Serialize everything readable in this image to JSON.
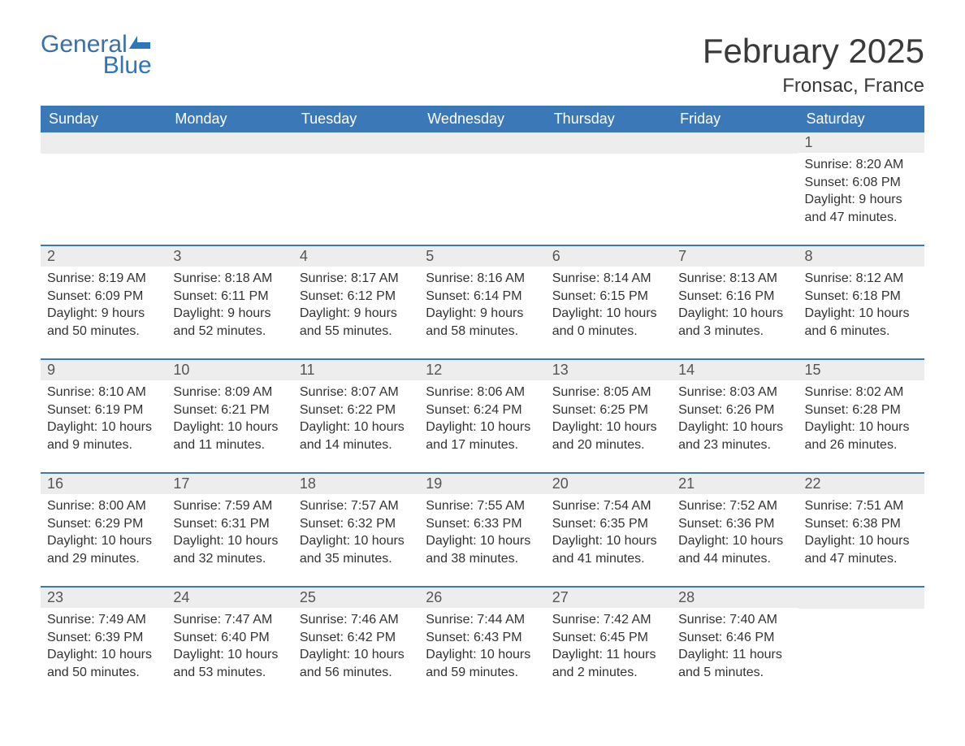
{
  "brand": {
    "name1": "General",
    "name2": "Blue",
    "flag_color": "#2e76bc"
  },
  "title": "February 2025",
  "location": "Fronsac, France",
  "colors": {
    "header_bg": "#3a78b8",
    "header_text": "#ffffff",
    "daynum_bg": "#ededed",
    "rule": "#3a78b8",
    "body_text": "#333333",
    "title_text": "#3a3a3a"
  },
  "dow": [
    "Sunday",
    "Monday",
    "Tuesday",
    "Wednesday",
    "Thursday",
    "Friday",
    "Saturday"
  ],
  "labels": {
    "sunrise": "Sunrise",
    "sunset": "Sunset",
    "daylight": "Daylight"
  },
  "weeks": [
    [
      null,
      null,
      null,
      null,
      null,
      null,
      {
        "n": 1,
        "sunrise": "8:20 AM",
        "sunset": "6:08 PM",
        "daylight": "9 hours and 47 minutes."
      }
    ],
    [
      {
        "n": 2,
        "sunrise": "8:19 AM",
        "sunset": "6:09 PM",
        "daylight": "9 hours and 50 minutes."
      },
      {
        "n": 3,
        "sunrise": "8:18 AM",
        "sunset": "6:11 PM",
        "daylight": "9 hours and 52 minutes."
      },
      {
        "n": 4,
        "sunrise": "8:17 AM",
        "sunset": "6:12 PM",
        "daylight": "9 hours and 55 minutes."
      },
      {
        "n": 5,
        "sunrise": "8:16 AM",
        "sunset": "6:14 PM",
        "daylight": "9 hours and 58 minutes."
      },
      {
        "n": 6,
        "sunrise": "8:14 AM",
        "sunset": "6:15 PM",
        "daylight": "10 hours and 0 minutes."
      },
      {
        "n": 7,
        "sunrise": "8:13 AM",
        "sunset": "6:16 PM",
        "daylight": "10 hours and 3 minutes."
      },
      {
        "n": 8,
        "sunrise": "8:12 AM",
        "sunset": "6:18 PM",
        "daylight": "10 hours and 6 minutes."
      }
    ],
    [
      {
        "n": 9,
        "sunrise": "8:10 AM",
        "sunset": "6:19 PM",
        "daylight": "10 hours and 9 minutes."
      },
      {
        "n": 10,
        "sunrise": "8:09 AM",
        "sunset": "6:21 PM",
        "daylight": "10 hours and 11 minutes."
      },
      {
        "n": 11,
        "sunrise": "8:07 AM",
        "sunset": "6:22 PM",
        "daylight": "10 hours and 14 minutes."
      },
      {
        "n": 12,
        "sunrise": "8:06 AM",
        "sunset": "6:24 PM",
        "daylight": "10 hours and 17 minutes."
      },
      {
        "n": 13,
        "sunrise": "8:05 AM",
        "sunset": "6:25 PM",
        "daylight": "10 hours and 20 minutes."
      },
      {
        "n": 14,
        "sunrise": "8:03 AM",
        "sunset": "6:26 PM",
        "daylight": "10 hours and 23 minutes."
      },
      {
        "n": 15,
        "sunrise": "8:02 AM",
        "sunset": "6:28 PM",
        "daylight": "10 hours and 26 minutes."
      }
    ],
    [
      {
        "n": 16,
        "sunrise": "8:00 AM",
        "sunset": "6:29 PM",
        "daylight": "10 hours and 29 minutes."
      },
      {
        "n": 17,
        "sunrise": "7:59 AM",
        "sunset": "6:31 PM",
        "daylight": "10 hours and 32 minutes."
      },
      {
        "n": 18,
        "sunrise": "7:57 AM",
        "sunset": "6:32 PM",
        "daylight": "10 hours and 35 minutes."
      },
      {
        "n": 19,
        "sunrise": "7:55 AM",
        "sunset": "6:33 PM",
        "daylight": "10 hours and 38 minutes."
      },
      {
        "n": 20,
        "sunrise": "7:54 AM",
        "sunset": "6:35 PM",
        "daylight": "10 hours and 41 minutes."
      },
      {
        "n": 21,
        "sunrise": "7:52 AM",
        "sunset": "6:36 PM",
        "daylight": "10 hours and 44 minutes."
      },
      {
        "n": 22,
        "sunrise": "7:51 AM",
        "sunset": "6:38 PM",
        "daylight": "10 hours and 47 minutes."
      }
    ],
    [
      {
        "n": 23,
        "sunrise": "7:49 AM",
        "sunset": "6:39 PM",
        "daylight": "10 hours and 50 minutes."
      },
      {
        "n": 24,
        "sunrise": "7:47 AM",
        "sunset": "6:40 PM",
        "daylight": "10 hours and 53 minutes."
      },
      {
        "n": 25,
        "sunrise": "7:46 AM",
        "sunset": "6:42 PM",
        "daylight": "10 hours and 56 minutes."
      },
      {
        "n": 26,
        "sunrise": "7:44 AM",
        "sunset": "6:43 PM",
        "daylight": "10 hours and 59 minutes."
      },
      {
        "n": 27,
        "sunrise": "7:42 AM",
        "sunset": "6:45 PM",
        "daylight": "11 hours and 2 minutes."
      },
      {
        "n": 28,
        "sunrise": "7:40 AM",
        "sunset": "6:46 PM",
        "daylight": "11 hours and 5 minutes."
      },
      null
    ]
  ]
}
